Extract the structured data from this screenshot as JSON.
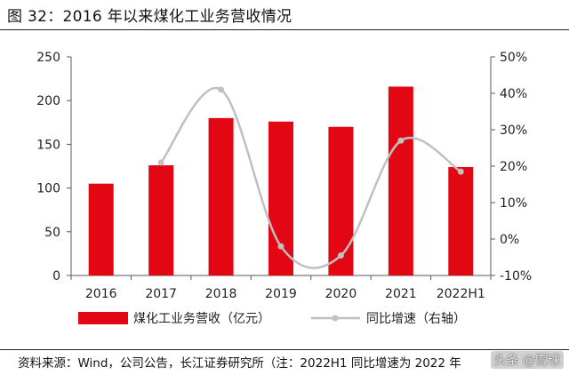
{
  "figure": {
    "title": "图 32：2016 年以来煤化工业务营收情况",
    "source": "资料来源：Wind，公司公告，长江证券研究所（注：2022H1 同比增速为 2022 年",
    "watermark": "头条 @雪球"
  },
  "colors": {
    "bar": "#e30613",
    "line": "#c0c0c0",
    "axis": "#595959"
  },
  "chart_data": {
    "type": "bar",
    "categories": [
      "2016",
      "2017",
      "2018",
      "2019",
      "2020",
      "2021",
      "2022H1"
    ],
    "series": [
      {
        "name": "煤化工业务营收（亿元）",
        "type": "bar",
        "axis": "left",
        "values": [
          105,
          126,
          180,
          176,
          170,
          216,
          124
        ]
      },
      {
        "name": "同比增速（右轴）",
        "type": "line",
        "axis": "right",
        "values": [
          null,
          0.21,
          0.41,
          -0.02,
          -0.045,
          0.27,
          0.185
        ]
      }
    ],
    "left_axis": {
      "ylim": [
        0,
        250
      ],
      "ticks": [
        "0",
        "50",
        "100",
        "150",
        "200",
        "250"
      ]
    },
    "right_axis": {
      "ylim": [
        -0.1,
        0.5
      ],
      "ticks": [
        "-10%",
        "0%",
        "10%",
        "20%",
        "30%",
        "40%",
        "50%"
      ]
    },
    "legend": "bottom-center",
    "grid": false
  }
}
